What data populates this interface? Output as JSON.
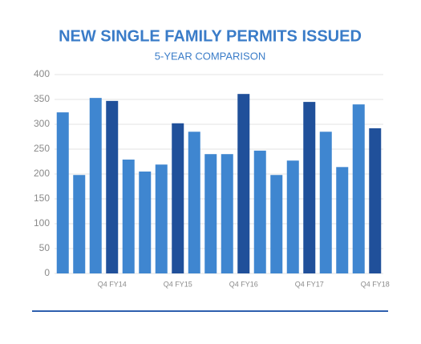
{
  "chart_data": {
    "type": "bar",
    "title": "NEW SINGLE FAMILY PERMITS ISSUED",
    "subtitle": "5-YEAR COMPARISON",
    "categories": [
      null,
      null,
      null,
      "Q4 FY14",
      null,
      null,
      null,
      "Q4 FY15",
      null,
      null,
      null,
      "Q4 FY16",
      null,
      null,
      null,
      "Q4 FY17",
      null,
      null,
      null,
      "Q4 FY18"
    ],
    "values": [
      324,
      198,
      353,
      347,
      229,
      205,
      219,
      302,
      285,
      240,
      240,
      361,
      247,
      198,
      227,
      345,
      285,
      214,
      340,
      292
    ],
    "colors": [
      "#3f86d0",
      "#3f86d0",
      "#3f86d0",
      "#20509a",
      "#3f86d0",
      "#3f86d0",
      "#3f86d0",
      "#20509a",
      "#3f86d0",
      "#3f86d0",
      "#3f86d0",
      "#20509a",
      "#3f86d0",
      "#3f86d0",
      "#3f86d0",
      "#20509a",
      "#3f86d0",
      "#3f86d0",
      "#3f86d0",
      "#20509a"
    ],
    "ylim": [
      0,
      400
    ],
    "yticks": [
      0,
      50,
      100,
      150,
      200,
      250,
      300,
      350,
      400
    ],
    "grid": true
  }
}
